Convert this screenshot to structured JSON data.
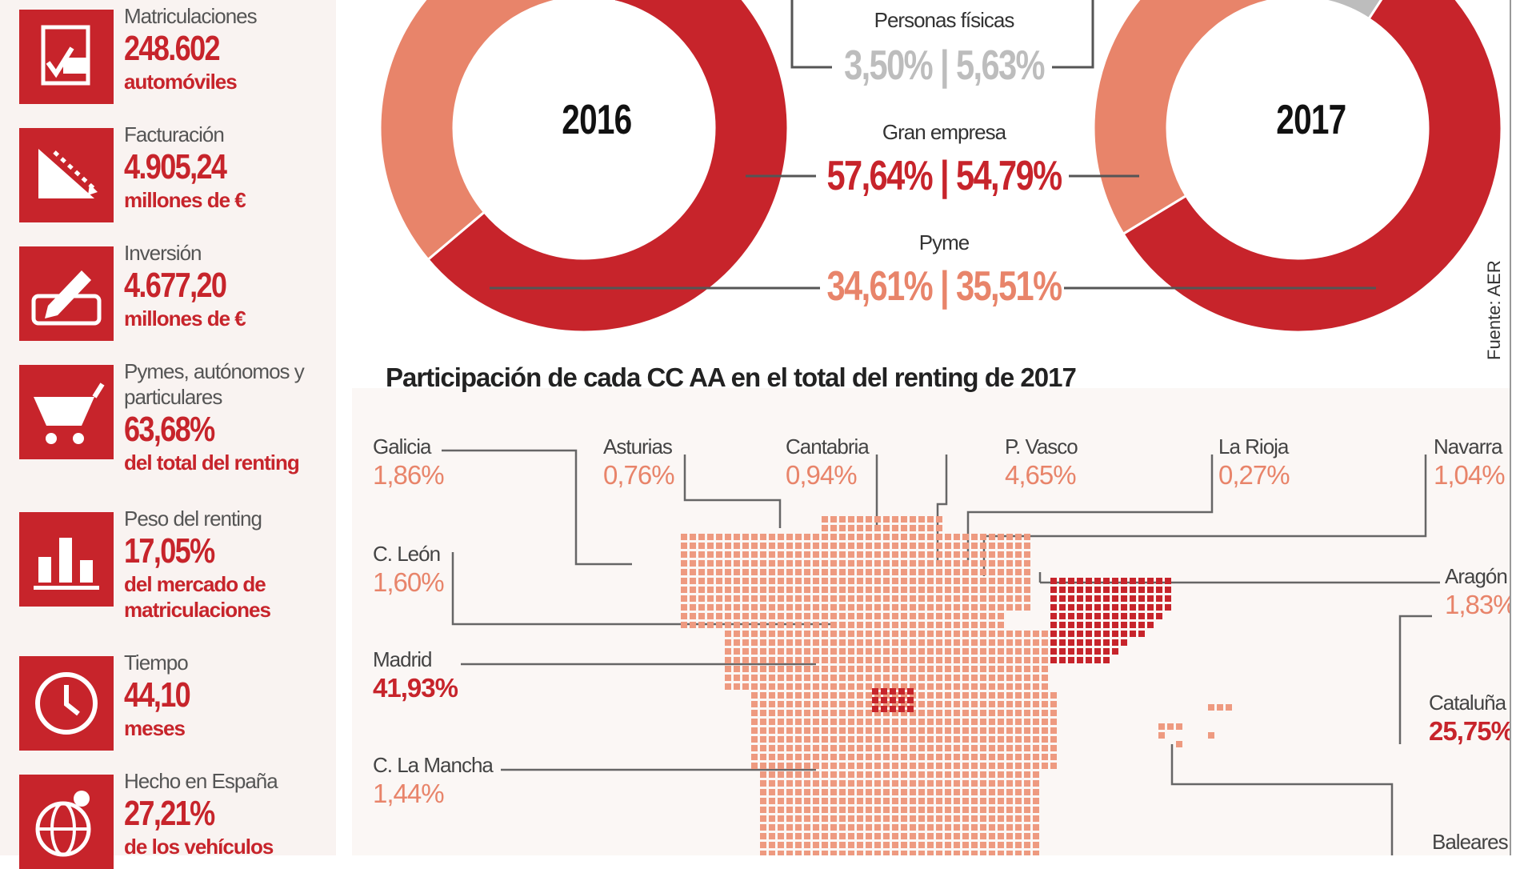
{
  "sidebar": {
    "items": [
      {
        "label": "Matriculaciones",
        "value": "248.602",
        "unit": "automóviles",
        "icon": "document-check-icon"
      },
      {
        "label": "Facturación",
        "value": "4.905,24",
        "unit": "millones de €",
        "icon": "growth-chart-icon"
      },
      {
        "label": "Inversión",
        "value": "4.677,20",
        "unit": "millones de €",
        "icon": "signature-pen-icon"
      },
      {
        "label": "Pymes, autónomos y particulares",
        "value": "63,68%",
        "unit": "del total del renting",
        "icon": "shopping-cart-icon"
      },
      {
        "label": "Peso del renting",
        "value": "17,05%",
        "unit": "del mercado de matriculaciones",
        "icon": "bar-chart-icon"
      },
      {
        "label": "Tiempo",
        "value": "44,10",
        "unit": "meses",
        "icon": "clock-icon"
      },
      {
        "label": "Hecho en España",
        "value": "27,21%",
        "unit": "de los vehículos",
        "icon": "globe-pin-icon"
      }
    ]
  },
  "colors": {
    "accent": "#c7242b",
    "pyme": "#e8846a",
    "personas": "#bdbdbd",
    "map_dot": "#ee9a80"
  },
  "chart_data": [
    {
      "type": "pie",
      "title": "2016",
      "series": [
        {
          "name": "Personas físicas",
          "value": 3.5
        },
        {
          "name": "Gran empresa",
          "value": 57.64
        },
        {
          "name": "Pyme",
          "value": 34.61
        }
      ]
    },
    {
      "type": "pie",
      "title": "2017",
      "series": [
        {
          "name": "Personas físicas",
          "value": 5.63
        },
        {
          "name": "Gran empresa",
          "value": 54.79
        },
        {
          "name": "Pyme",
          "value": 35.51
        }
      ]
    },
    {
      "type": "table",
      "title": "Participación de cada CC AA en el total del renting de 2017",
      "rows": [
        {
          "name": "Galicia",
          "value": "1,86%"
        },
        {
          "name": "Asturias",
          "value": "0,76%"
        },
        {
          "name": "Cantabria",
          "value": "0,94%"
        },
        {
          "name": "P. Vasco",
          "value": "4,65%"
        },
        {
          "name": "La Rioja",
          "value": "0,27%"
        },
        {
          "name": "Navarra",
          "value": "1,04%"
        },
        {
          "name": "C. León",
          "value": "1,60%"
        },
        {
          "name": "Aragón",
          "value": "1,83%"
        },
        {
          "name": "Madrid",
          "value": "41,93%"
        },
        {
          "name": "Cataluña",
          "value": "25,75%"
        },
        {
          "name": "C. La Mancha",
          "value": "1,44%"
        },
        {
          "name": "Baleares",
          "value": ""
        }
      ]
    }
  ],
  "donuts": {
    "year_2016": "2016",
    "year_2017": "2017",
    "personas_label": "Personas físicas",
    "personas_values": "3,50% | 5,63%",
    "gran_label": "Gran empresa",
    "gran_values": "57,64% | 54,79%",
    "pyme_label": "Pyme",
    "pyme_values": "34,61% | 35,51%"
  },
  "source": "Fuente: AER",
  "map_title": "Participación de cada CC AA en el total del renting de 2017"
}
